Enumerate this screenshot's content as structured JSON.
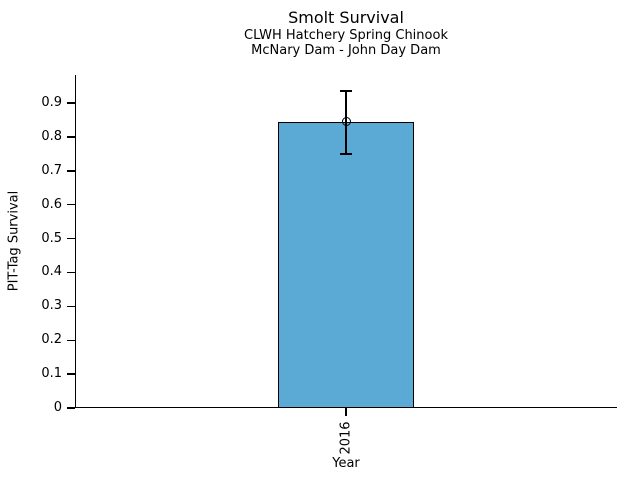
{
  "chart_data": {
    "type": "bar",
    "title": "Smolt Survival",
    "subtitles": [
      "CLWH Hatchery Spring Chinook",
      "McNary Dam - John Day Dam"
    ],
    "xlabel": "Year",
    "ylabel": "PIT-Tag Survival",
    "categories": [
      "2016"
    ],
    "values": [
      0.845
    ],
    "error_bars": [
      {
        "low": 0.75,
        "high": 0.935
      }
    ],
    "marker_style": "open-circle",
    "ylim": [
      0,
      0.983
    ],
    "yticks": [
      0,
      0.1,
      0.2,
      0.3,
      0.4,
      0.5,
      0.6,
      0.7,
      0.8,
      0.9
    ],
    "ytick_labels": [
      "0",
      "0.1",
      "0.2",
      "0.3",
      "0.4",
      "0.5",
      "0.6",
      "0.7",
      "0.8",
      "0.9"
    ],
    "grid": false,
    "legend": "none",
    "bar_color": "#5BAAD6",
    "bar_edge_color": "#000000",
    "axis_color": "#000000",
    "text_color": "#000000",
    "background_color": "#FFFFFF"
  }
}
